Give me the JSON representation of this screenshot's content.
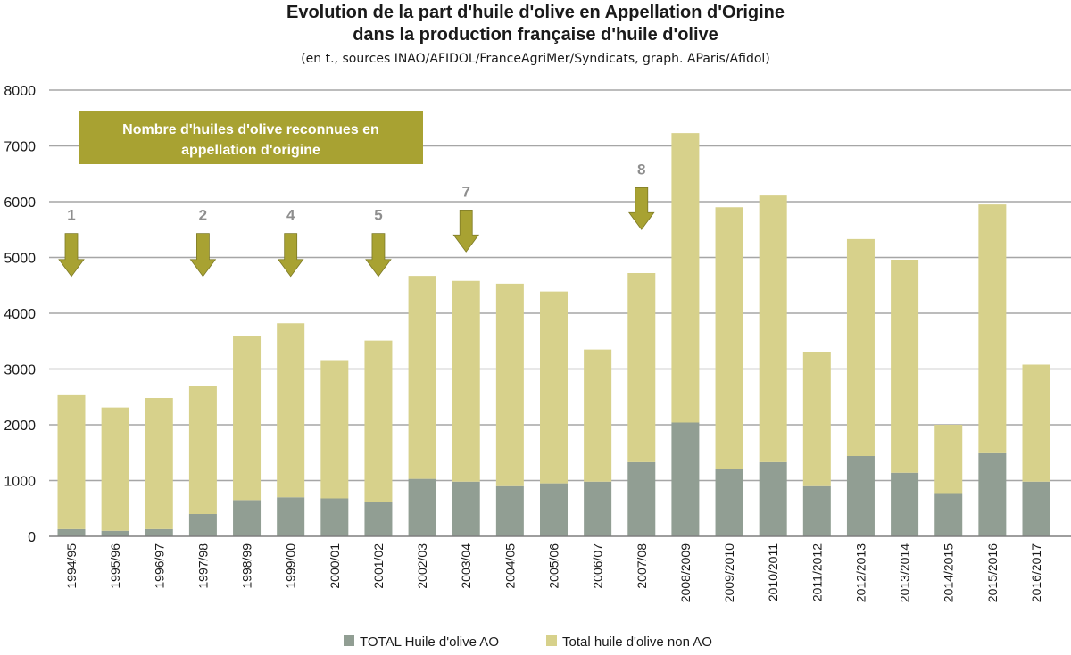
{
  "chart_data": {
    "type": "bar",
    "stacked": true,
    "title_lines": [
      "Evolution de la part d'huile d'olive en Appellation d'Origine",
      "dans la production française d'huile d'olive"
    ],
    "subtitle": "(en t., sources INAO/AFIDOL/FranceAgriMer/Syndicats, graph. AParis/Afidol)",
    "xlabel": "",
    "ylabel": "",
    "ylim": [
      0,
      8000
    ],
    "yticks": [
      "0",
      "1000",
      "2000",
      "3000",
      "4000",
      "5000",
      "6000",
      "7000",
      "8000"
    ],
    "grid": true,
    "legend_position": "bottom",
    "categories": [
      "1994/95",
      "1995/96",
      "1996/97",
      "1997/98",
      "1998/99",
      "1999/00",
      "2000/01",
      "2001/02",
      "2002/03",
      "2003/04",
      "2004/05",
      "2005/06",
      "2006/07",
      "2007/08",
      "2008/2009",
      "2009/2010",
      "2010/2011",
      "2011/2012",
      "2012/2013",
      "2013/2014",
      "2014/2015",
      "2015/2016",
      "2016/2017"
    ],
    "series": [
      {
        "name": "TOTAL Huile d'olive AO",
        "color": "#919e93",
        "values": [
          130,
          100,
          130,
          400,
          650,
          700,
          680,
          620,
          1030,
          980,
          900,
          950,
          980,
          1330,
          2040,
          1200,
          1330,
          900,
          1440,
          1140,
          760,
          1490,
          980
        ]
      },
      {
        "name": "Total huile d'olive non AO",
        "color": "#d7d18b",
        "values": [
          2400,
          2210,
          2350,
          2300,
          2950,
          3120,
          2480,
          2890,
          3640,
          3600,
          3630,
          3440,
          2370,
          3390,
          5190,
          4700,
          4780,
          2400,
          3890,
          3820,
          1240,
          4460,
          2100
        ]
      }
    ],
    "annotation_box": {
      "text_lines": [
        "Nombre d'huiles d'olive reconnues en",
        "appellation d'origine"
      ],
      "color": "#a8a232"
    },
    "arrow_color": "#a8a232",
    "markers": [
      {
        "category": "1994/95",
        "count": "1",
        "y_top": 5430,
        "y_tip": 4660
      },
      {
        "category": "1997/98",
        "count": "2",
        "y_top": 5430,
        "y_tip": 4660
      },
      {
        "category": "1999/00",
        "count": "4",
        "y_top": 5430,
        "y_tip": 4660
      },
      {
        "category": "2001/02",
        "count": "5",
        "y_top": 5430,
        "y_tip": 4660
      },
      {
        "category": "2003/04",
        "count": "7",
        "y_top": 5850,
        "y_tip": 5100
      },
      {
        "category": "2007/08",
        "count": "8",
        "y_top": 6250,
        "y_tip": 5500
      }
    ]
  }
}
